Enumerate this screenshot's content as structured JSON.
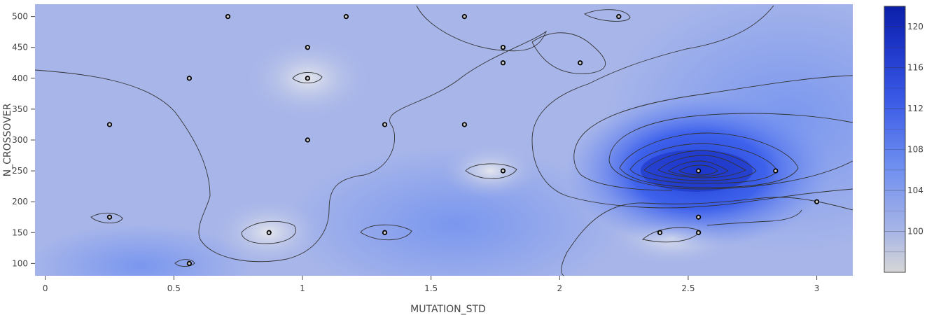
{
  "chart_data": {
    "type": "contour",
    "xlabel": "MUTATION_STD",
    "ylabel": "N_CROSSOVER",
    "xlim": [
      -0.04,
      3.14
    ],
    "ylim": [
      80,
      520
    ],
    "x_ticks": [
      0,
      0.5,
      1,
      1.5,
      2,
      2.5,
      3
    ],
    "x_tick_labels": [
      "0",
      "0.5",
      "1",
      "1.5",
      "2",
      "2.5",
      "3"
    ],
    "y_ticks": [
      100,
      150,
      200,
      250,
      300,
      350,
      400,
      450,
      500
    ],
    "y_tick_labels": [
      "100",
      "150",
      "200",
      "250",
      "300",
      "350",
      "400",
      "450",
      "500"
    ],
    "colorbar": {
      "range": [
        96,
        122
      ],
      "ticks": [
        100,
        104,
        108,
        112,
        116,
        120
      ],
      "tick_labels": [
        "100",
        "104",
        "108",
        "112",
        "116",
        "120"
      ]
    },
    "points": [
      {
        "x": 0.25,
        "y": 325,
        "z": 101
      },
      {
        "x": 0.25,
        "y": 175,
        "z": 100
      },
      {
        "x": 0.56,
        "y": 400,
        "z": 100
      },
      {
        "x": 0.56,
        "y": 100,
        "z": 100
      },
      {
        "x": 0.71,
        "y": 500,
        "z": 100
      },
      {
        "x": 0.87,
        "y": 150,
        "z": 97
      },
      {
        "x": 1.02,
        "y": 450,
        "z": 99
      },
      {
        "x": 1.02,
        "y": 400,
        "z": 98
      },
      {
        "x": 1.02,
        "y": 300,
        "z": 99
      },
      {
        "x": 1.17,
        "y": 500,
        "z": 99
      },
      {
        "x": 1.32,
        "y": 325,
        "z": 100
      },
      {
        "x": 1.32,
        "y": 150,
        "z": 102
      },
      {
        "x": 1.63,
        "y": 500,
        "z": 100
      },
      {
        "x": 1.63,
        "y": 325,
        "z": 101
      },
      {
        "x": 1.78,
        "y": 450,
        "z": 100
      },
      {
        "x": 1.78,
        "y": 425,
        "z": 100
      },
      {
        "x": 1.78,
        "y": 250,
        "z": 98
      },
      {
        "x": 2.08,
        "y": 425,
        "z": 100
      },
      {
        "x": 2.23,
        "y": 500,
        "z": 100
      },
      {
        "x": 2.39,
        "y": 150,
        "z": 99
      },
      {
        "x": 2.54,
        "y": 250,
        "z": 120
      },
      {
        "x": 2.54,
        "y": 175,
        "z": 101
      },
      {
        "x": 2.54,
        "y": 150,
        "z": 99
      },
      {
        "x": 2.84,
        "y": 250,
        "z": 108
      },
      {
        "x": 3.0,
        "y": 200,
        "z": 101
      }
    ]
  }
}
